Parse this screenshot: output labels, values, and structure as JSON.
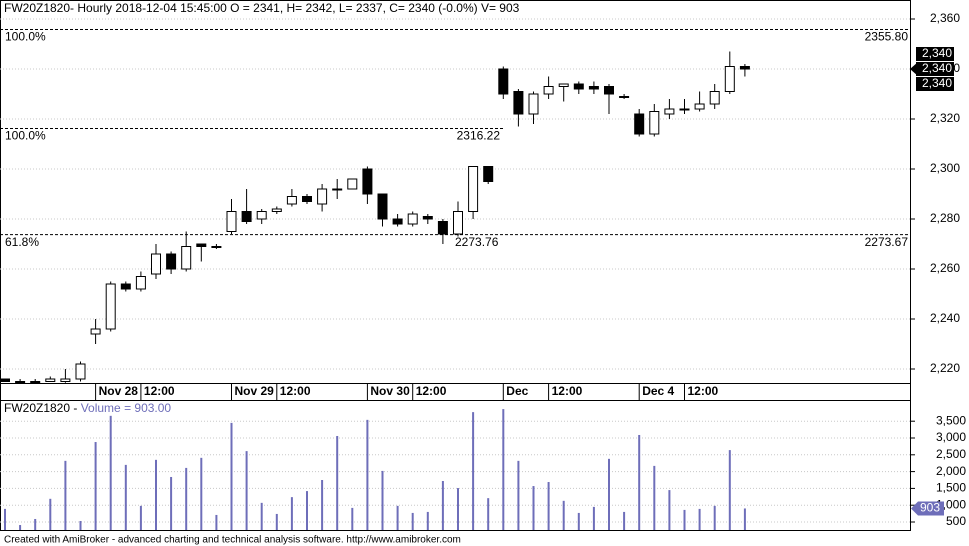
{
  "chart_data": [
    {
      "type": "candlestick",
      "title": "FW20Z1820- Hourly 2018-12-04 15:45:00 O = 2341, H= 2342, L= 2337, C= 2340 (-0.0%) V= 903",
      "categories": [
        null,
        null,
        null,
        null,
        null,
        null,
        "Nov 28",
        null,
        null,
        "12:00",
        null,
        null,
        null,
        null,
        null,
        "Nov 29",
        null,
        null,
        "12:00",
        null,
        null,
        null,
        null,
        null,
        "Nov 30",
        null,
        null,
        "12:00",
        null,
        null,
        null,
        null,
        null,
        "Dec",
        null,
        null,
        "12:00",
        null,
        null,
        null,
        null,
        null,
        "Dec 4",
        null,
        null,
        "12:00",
        null,
        null,
        null,
        null
      ],
      "open": [
        2216,
        2215,
        2215,
        2215,
        2215,
        2216,
        2234,
        2236,
        2254,
        2252,
        2258,
        2266,
        2260,
        2270,
        2269,
        2275,
        2283,
        2280,
        2283,
        2286,
        2289,
        2286,
        2292,
        2292,
        2300,
        2290,
        2280,
        2278,
        2281,
        2279,
        2274,
        2283,
        2301,
        2340,
        2331,
        2322,
        2330,
        2333,
        2334,
        2333,
        2333,
        2329,
        2322,
        2314,
        2322,
        2324,
        2324,
        2326,
        2331,
        2341
      ],
      "high": [
        2216,
        2216,
        2216,
        2217,
        2220,
        2223,
        2240,
        2255,
        2255,
        2259,
        2270,
        2267,
        2275,
        2270,
        2270,
        2288,
        2292,
        2284,
        2285,
        2292,
        2290,
        2294,
        2296,
        2296,
        2301,
        2290,
        2282,
        2283,
        2282,
        2280,
        2287,
        2301,
        2301,
        2341,
        2332,
        2331,
        2337,
        2334,
        2335,
        2335,
        2334,
        2330,
        2324,
        2326,
        2328,
        2328,
        2331,
        2334,
        2347,
        2342
      ],
      "low": [
        2215,
        2215,
        2215,
        2215,
        2214.5,
        2215,
        2230,
        2235,
        2251,
        2251,
        2256,
        2258,
        2259,
        2263,
        2268,
        2274,
        2278,
        2278,
        2282,
        2285,
        2286,
        2283,
        2288,
        2292,
        2286,
        2277,
        2277,
        2277,
        2278,
        2270,
        2273,
        2280,
        2294,
        2328,
        2317,
        2318,
        2328,
        2327,
        2330,
        2330,
        2322,
        2328,
        2313,
        2313,
        2320,
        2322,
        2323,
        2324,
        2330,
        2337
      ],
      "close": [
        2215,
        2215,
        2215,
        2216,
        2216,
        2222,
        2236,
        2254,
        2252,
        2257,
        2266,
        2260,
        2269,
        2269,
        2269,
        2283,
        2279,
        2283,
        2284,
        2289,
        2287,
        2292,
        2292,
        2296,
        2290,
        2280,
        2278,
        2282,
        2280,
        2274,
        2283,
        2301,
        2295,
        2330,
        2322,
        2330,
        2333,
        2334,
        2332,
        2332,
        2330,
        2329,
        2314,
        2323,
        2324,
        2324,
        2326,
        2331,
        2341,
        2340
      ],
      "up_color": "#ffffff",
      "down_color": "#000000",
      "ylim": [
        2214.4,
        2367.6
      ],
      "yticks": [
        {
          "value": 2220,
          "label": "2,220"
        },
        {
          "value": 2240,
          "label": "2,240"
        },
        {
          "value": 2260,
          "label": "2,260"
        },
        {
          "value": 2280,
          "label": "2,280"
        },
        {
          "value": 2300,
          "label": "2,300"
        },
        {
          "value": 2320,
          "label": "2,320"
        },
        {
          "value": 2340,
          "label": "2,340"
        },
        {
          "value": 2360,
          "label": "2,360"
        }
      ],
      "grid": true,
      "levels": [
        {
          "value": 2355.8,
          "pct": "100.0%",
          "texts": [
            "2355.80"
          ]
        },
        {
          "value": 2316.22,
          "pct": "100.0%",
          "texts": [
            "2316.22"
          ]
        },
        {
          "value": 2273.76,
          "pct": "61.8%",
          "texts": [
            "2273.76",
            "2273.67"
          ]
        }
      ],
      "last_labels": [
        "2,340",
        "2,340",
        "2,340"
      ]
    },
    {
      "type": "bar",
      "label_prefix": "FW20Z1820 - ",
      "title": "Volume = 903.00",
      "values": [
        890,
        410,
        590,
        1190,
        2320,
        530,
        2880,
        3660,
        2200,
        980,
        2350,
        1840,
        2110,
        2410,
        710,
        3450,
        2610,
        1070,
        740,
        1240,
        1420,
        1750,
        3060,
        920,
        3540,
        2020,
        980,
        770,
        800,
        1720,
        1510,
        3770,
        1210,
        3860,
        2320,
        1570,
        1690,
        1130,
        770,
        950,
        2380,
        800,
        3090,
        2170,
        1450,
        860,
        890,
        980,
        2640,
        903
      ],
      "color": "#6e6eb9",
      "ylim": [
        262,
        4131
      ],
      "yticks": [
        {
          "value": 500,
          "label": "500"
        },
        {
          "value": 1000,
          "label": "1,000"
        },
        {
          "value": 1500,
          "label": "1,500"
        },
        {
          "value": 2000,
          "label": "2,000"
        },
        {
          "value": 2500,
          "label": "2,500"
        },
        {
          "value": 3000,
          "label": "3,000"
        },
        {
          "value": 3500,
          "label": "3,500"
        }
      ],
      "grid": true
    }
  ],
  "footer": "Created with AmiBroker - advanced charting and technical analysis software. http://www.amibroker.com"
}
